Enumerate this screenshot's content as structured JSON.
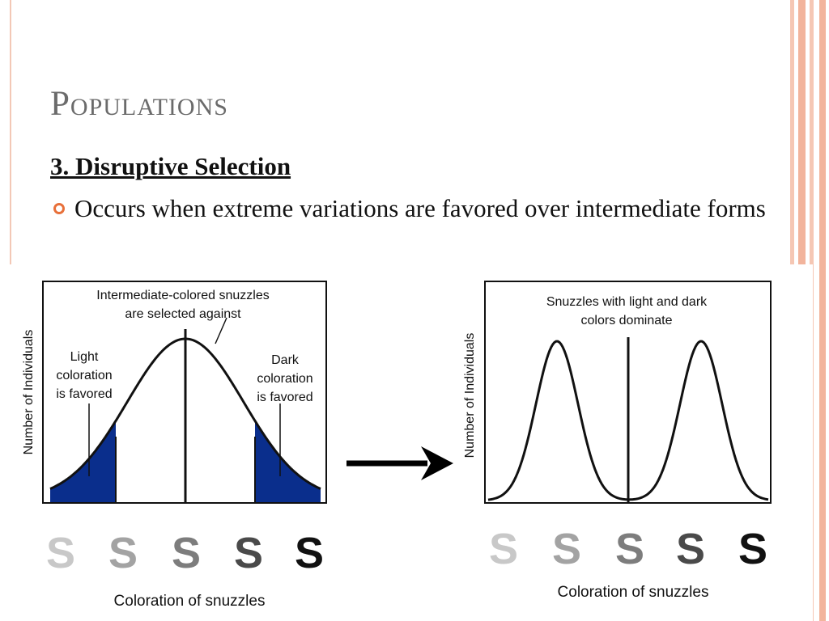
{
  "slide": {
    "title": "Populations",
    "subtitle": "3. Disruptive Selection",
    "bullet": "Occurs when extreme variations are favored over intermediate forms"
  },
  "colors": {
    "accent": "#e8703a",
    "fill_selected": "#0a2e8c",
    "stripe_light": "#f5c7b4",
    "stripe_dark": "#f2b49c"
  },
  "figure": {
    "left_panel": {
      "ylabel": "Number of Individuals",
      "xlabel": "Coloration of snuzzles",
      "top_annotation": [
        "Intermediate-colored snuzzles",
        "are selected against"
      ],
      "left_annotation": [
        "Light",
        "coloration",
        "is favored"
      ],
      "right_annotation": [
        "Dark",
        "coloration",
        "is favored"
      ]
    },
    "right_panel": {
      "ylabel": "Number of Individuals",
      "xlabel": "Coloration of snuzzles",
      "top_annotation": [
        "Snuzzles with light and dark",
        "colors dominate"
      ]
    },
    "letter": "S",
    "letter_shades": [
      "#c8c8c8",
      "#a3a3a3",
      "#7d7d7d",
      "#4a4a4a",
      "#111111"
    ]
  }
}
